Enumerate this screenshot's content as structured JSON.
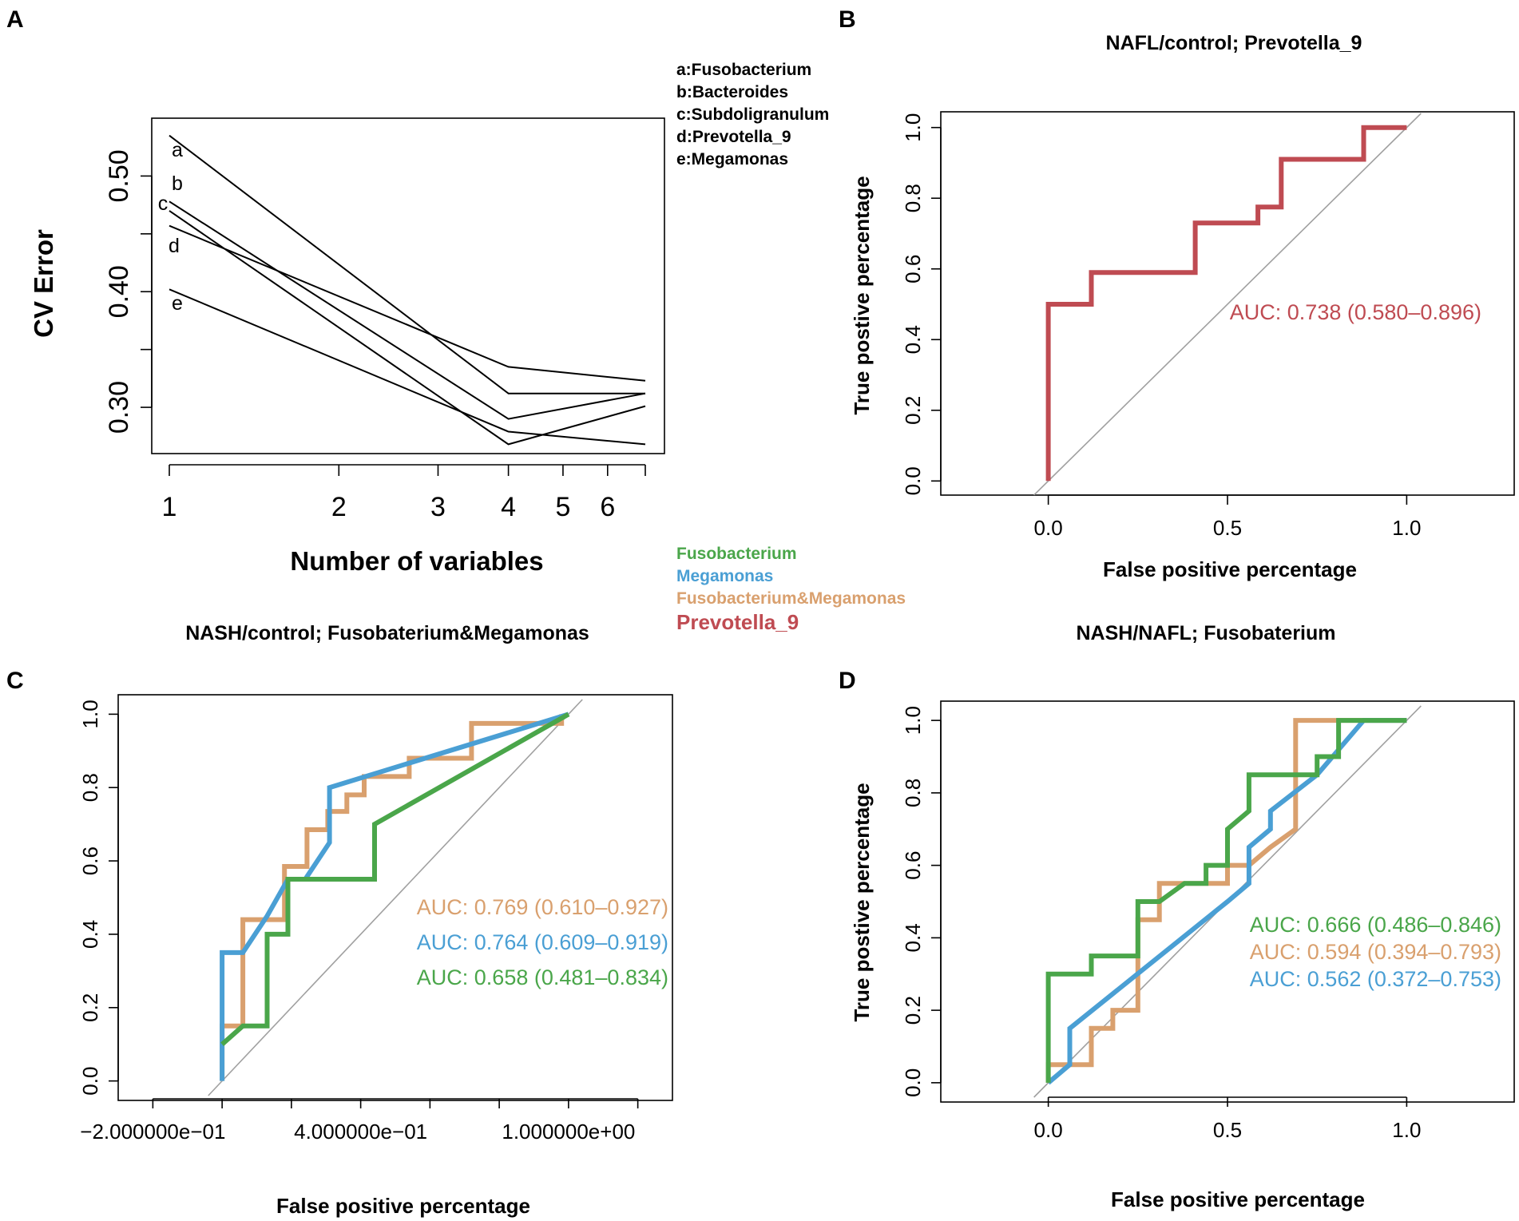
{
  "colors": {
    "green": "#4aa64a",
    "blue": "#4a9fd4",
    "tan": "#d9a06e",
    "red": "#bf4b52",
    "black": "#000000",
    "diag": "#a0a0a0"
  },
  "figure_legend": [
    {
      "label": "Fusobacterium",
      "color": "#4aa64a"
    },
    {
      "label": "Megamonas",
      "color": "#4a9fd4"
    },
    {
      "label": "Fusobacterium&Megamonas",
      "color": "#d9a06e"
    },
    {
      "label": "Prevotella_9",
      "color": "#bf4b52"
    }
  ],
  "chart_data": [
    {
      "id": "A",
      "panel_label": "A",
      "type": "line",
      "title": "",
      "xlabel": "Number of variables",
      "ylabel": "CV Error",
      "x_scale": "log",
      "xlim": [
        1,
        7
      ],
      "ylim": [
        0.26,
        0.55
      ],
      "x_ticks": [
        1,
        2,
        3,
        4,
        5,
        6
      ],
      "x_tick_labels": [
        "1",
        "2",
        "3",
        "4",
        "5",
        "6"
      ],
      "y_ticks": [
        0.3,
        0.35,
        0.4,
        0.45,
        0.5
      ],
      "y_tick_labels": [
        "0.30",
        "",
        "0.40",
        "",
        "0.50"
      ],
      "legend_text": [
        "a:Fusobacterium",
        "b:Bacteroides",
        "c:Subdoligranulum",
        "d:Prevotella_9",
        "e:Megamonas"
      ],
      "series": [
        {
          "name": "a",
          "x": [
            1,
            4,
            7
          ],
          "y": [
            0.535,
            0.312,
            0.312
          ]
        },
        {
          "name": "b",
          "x": [
            1,
            4,
            7
          ],
          "y": [
            0.478,
            0.29,
            0.312
          ]
        },
        {
          "name": "c",
          "x": [
            1,
            4,
            7
          ],
          "y": [
            0.47,
            0.268,
            0.301
          ]
        },
        {
          "name": "d",
          "x": [
            1,
            4,
            7
          ],
          "y": [
            0.457,
            0.335,
            0.323
          ]
        },
        {
          "name": "e",
          "x": [
            1,
            4,
            7
          ],
          "y": [
            0.402,
            0.279,
            0.268
          ]
        }
      ]
    },
    {
      "id": "B",
      "panel_label": "B",
      "type": "line",
      "title": "NAFL/control; Prevotella_9",
      "xlabel": "False positive percentage",
      "ylabel": "True postive percentage",
      "xlim": [
        -0.3,
        1.3
      ],
      "ylim": [
        -0.04,
        1.04
      ],
      "x_ticks": [
        0.0,
        0.5,
        1.0
      ],
      "x_tick_labels": [
        "0.0",
        "0.5",
        "1.0"
      ],
      "y_ticks": [
        0.0,
        0.2,
        0.4,
        0.6,
        0.8,
        1.0
      ],
      "y_tick_labels": [
        "0.0",
        "0.2",
        "0.4",
        "0.6",
        "0.8",
        "1.0"
      ],
      "series": [
        {
          "name": "Prevotella_9",
          "color": "#bf4b52",
          "x": [
            0,
            0,
            0.12,
            0.12,
            0.41,
            0.41,
            0.585,
            0.585,
            0.65,
            0.65,
            0.88,
            0.88,
            1.0
          ],
          "y": [
            0,
            0.5,
            0.5,
            0.59,
            0.59,
            0.73,
            0.73,
            0.775,
            0.775,
            0.91,
            0.91,
            1.0,
            1.0
          ]
        }
      ],
      "auc": [
        {
          "text": "AUC: 0.738 (0.580–0.896)",
          "color": "#bf4b52"
        }
      ]
    },
    {
      "id": "C",
      "panel_label": "C",
      "type": "line",
      "title": "NASH/control; Fusobaterium&Megamonas",
      "xlabel": "False positive percentage",
      "ylabel": "",
      "xlim": [
        -0.3,
        1.3
      ],
      "ylim": [
        -0.04,
        1.04
      ],
      "x_ticks": [
        -0.2,
        0.0,
        0.2,
        0.4,
        0.6,
        0.8,
        1.0,
        1.2
      ],
      "x_tick_labels": [
        "−2.000000e−01",
        "",
        "",
        "4.000000e−01",
        "",
        "",
        "1.000000e+00",
        ""
      ],
      "y_ticks": [
        0.0,
        0.2,
        0.4,
        0.6,
        0.8,
        1.0
      ],
      "y_tick_labels": [
        "0.0",
        "0.2",
        "0.4",
        "0.6",
        "0.8",
        "1.0"
      ],
      "series": [
        {
          "name": "Fusobacterium&Megamonas",
          "color": "#d9a06e",
          "x": [
            0,
            0,
            0.06,
            0.06,
            0.18,
            0.18,
            0.245,
            0.245,
            0.305,
            0.305,
            0.36,
            0.36,
            0.41,
            0.41,
            0.54,
            0.54,
            0.72,
            0.72,
            0.98,
            0.98
          ],
          "y": [
            0,
            0.15,
            0.15,
            0.44,
            0.44,
            0.585,
            0.585,
            0.685,
            0.685,
            0.735,
            0.735,
            0.78,
            0.78,
            0.83,
            0.83,
            0.88,
            0.88,
            0.975,
            0.975,
            1.0
          ]
        },
        {
          "name": "Megamonas",
          "color": "#4a9fd4",
          "x": [
            0,
            0,
            0.06,
            0.13,
            0.13,
            0.19,
            0.24,
            0.31,
            0.31,
            0.31,
            0.31,
            0.31,
            1.0
          ],
          "y": [
            0,
            0.35,
            0.35,
            0.45,
            0.45,
            0.55,
            0.55,
            0.65,
            0.65,
            0.8,
            0.8,
            0.8,
            1.0
          ]
        },
        {
          "name": "Fusobacterium",
          "color": "#4aa64a",
          "x": [
            0,
            0.06,
            0.13,
            0.13,
            0.19,
            0.19,
            0.44,
            0.44,
            1.0
          ],
          "y": [
            0.1,
            0.15,
            0.15,
            0.4,
            0.4,
            0.55,
            0.55,
            0.7,
            1.0
          ]
        }
      ],
      "auc": [
        {
          "text": "AUC: 0.769 (0.610–0.927)",
          "color": "#d9a06e"
        },
        {
          "text": "AUC: 0.764 (0.609–0.919)",
          "color": "#4a9fd4"
        },
        {
          "text": "AUC: 0.658 (0.481–0.834)",
          "color": "#4aa64a"
        }
      ]
    },
    {
      "id": "D",
      "panel_label": "D",
      "type": "line",
      "title": "NASH/NAFL; Fusobaterium",
      "xlabel": "False positive percentage",
      "ylabel": "True postive percentage",
      "xlim": [
        -0.3,
        1.3
      ],
      "ylim": [
        -0.04,
        1.04
      ],
      "x_ticks": [
        0.0,
        0.5,
        1.0
      ],
      "x_tick_labels": [
        "0.0",
        "0.5",
        "1.0"
      ],
      "y_ticks": [
        0.0,
        0.2,
        0.4,
        0.6,
        0.8,
        1.0
      ],
      "y_tick_labels": [
        "0.0",
        "0.2",
        "0.4",
        "0.6",
        "0.8",
        "1.0"
      ],
      "series": [
        {
          "name": "Fusobacterium&Megamonas",
          "color": "#d9a06e",
          "x": [
            0,
            0,
            0.12,
            0.12,
            0.18,
            0.18,
            0.25,
            0.25,
            0.31,
            0.31,
            0.5,
            0.5,
            0.56,
            0.62,
            0.62,
            0.69,
            0.69,
            0.69,
            0.81,
            1.0
          ],
          "y": [
            0,
            0.05,
            0.05,
            0.15,
            0.15,
            0.2,
            0.2,
            0.45,
            0.45,
            0.55,
            0.55,
            0.6,
            0.6,
            0.65,
            0.65,
            0.7,
            1.0,
            1.0,
            1.0,
            1.0
          ]
        },
        {
          "name": "Megamonas",
          "color": "#4a9fd4",
          "x": [
            0,
            0.06,
            0.06,
            0.5,
            0.56,
            0.56,
            0.62,
            0.62,
            0.75,
            0.75,
            0.88,
            1.0
          ],
          "y": [
            0,
            0.05,
            0.15,
            0.5,
            0.55,
            0.65,
            0.7,
            0.75,
            0.85,
            0.85,
            1.0,
            1.0
          ]
        },
        {
          "name": "Fusobacterium",
          "color": "#4aa64a",
          "x": [
            0,
            0,
            0.12,
            0.12,
            0.25,
            0.25,
            0.31,
            0.38,
            0.44,
            0.44,
            0.5,
            0.5,
            0.56,
            0.56,
            0.69,
            0.69,
            0.75,
            0.75,
            0.81,
            0.81,
            1.0
          ],
          "y": [
            0,
            0.3,
            0.3,
            0.35,
            0.35,
            0.5,
            0.5,
            0.55,
            0.55,
            0.6,
            0.6,
            0.7,
            0.75,
            0.85,
            0.85,
            0.85,
            0.85,
            0.9,
            0.9,
            1.0,
            1.0
          ]
        }
      ],
      "auc": [
        {
          "text": "AUC: 0.666 (0.486–0.846)",
          "color": "#4aa64a"
        },
        {
          "text": "AUC: 0.594 (0.394–0.793)",
          "color": "#d9a06e"
        },
        {
          "text": "AUC: 0.562 (0.372–0.753)",
          "color": "#4a9fd4"
        }
      ]
    }
  ]
}
